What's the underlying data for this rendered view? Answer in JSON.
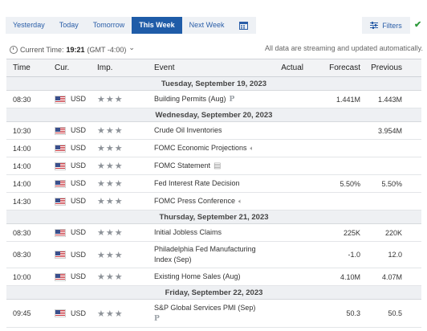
{
  "tabs": [
    {
      "label": "Yesterday",
      "active": false
    },
    {
      "label": "Today",
      "active": false
    },
    {
      "label": "Tomorrow",
      "active": false
    },
    {
      "label": "This Week",
      "active": true
    },
    {
      "label": "Next Week",
      "active": false
    }
  ],
  "calendar_icon": "calendar-icon",
  "filters": {
    "label": "Filters",
    "icon": "sliders-icon"
  },
  "status_icon": "checkmark-icon",
  "time": {
    "prefix": "Current Time:",
    "value": "19:21",
    "zone": "(GMT -4:00)",
    "dropdown": "⌄"
  },
  "status_text": "All data are streaming and updated automatically.",
  "columns": {
    "time": "Time",
    "cur": "Cur.",
    "imp": "Imp.",
    "event": "Event",
    "actual": "Actual",
    "forecast": "Forecast",
    "previous": "Previous"
  },
  "days": [
    {
      "label": "Tuesday, September 19, 2023",
      "events": [
        {
          "time": "08:30",
          "cur": "USD",
          "event": "Building Permits (Aug)",
          "icon": "p",
          "actual": "",
          "forecast": "1.441M",
          "previous": "1.443M"
        }
      ]
    },
    {
      "label": "Wednesday, September 20, 2023",
      "events": [
        {
          "time": "10:30",
          "cur": "USD",
          "event": "Crude Oil Inventories",
          "icon": "",
          "actual": "",
          "forecast": "",
          "previous": "3.954M"
        },
        {
          "time": "14:00",
          "cur": "USD",
          "event": "FOMC Economic Projections",
          "icon": "speaker",
          "actual": "",
          "forecast": "",
          "previous": ""
        },
        {
          "time": "14:00",
          "cur": "USD",
          "event": "FOMC Statement",
          "icon": "doc",
          "actual": "",
          "forecast": "",
          "previous": ""
        },
        {
          "time": "14:00",
          "cur": "USD",
          "event": "Fed Interest Rate Decision",
          "icon": "",
          "actual": "",
          "forecast": "5.50%",
          "previous": "5.50%"
        },
        {
          "time": "14:30",
          "cur": "USD",
          "event": "FOMC Press Conference",
          "icon": "speaker",
          "actual": "",
          "forecast": "",
          "previous": ""
        }
      ]
    },
    {
      "label": "Thursday, September 21, 2023",
      "events": [
        {
          "time": "08:30",
          "cur": "USD",
          "event": "Initial Jobless Claims",
          "icon": "",
          "actual": "",
          "forecast": "225K",
          "previous": "220K"
        },
        {
          "time": "08:30",
          "cur": "USD",
          "event": "Philadelphia Fed Manufacturing Index (Sep)",
          "icon": "",
          "actual": "",
          "forecast": "-1.0",
          "previous": "12.0"
        },
        {
          "time": "10:00",
          "cur": "USD",
          "event": "Existing Home Sales (Aug)",
          "icon": "",
          "actual": "",
          "forecast": "4.10M",
          "previous": "4.07M"
        }
      ]
    },
    {
      "label": "Friday, September 22, 2023",
      "events": [
        {
          "time": "09:45",
          "cur": "USD",
          "event": "S&P Global Services PMI (Sep)",
          "icon": "p",
          "actual": "",
          "forecast": "50.3",
          "previous": "50.5"
        }
      ]
    }
  ],
  "colors": {
    "active_tab": "#1f5ca8",
    "link": "#2a5ea8",
    "check": "#2e9a3c"
  }
}
